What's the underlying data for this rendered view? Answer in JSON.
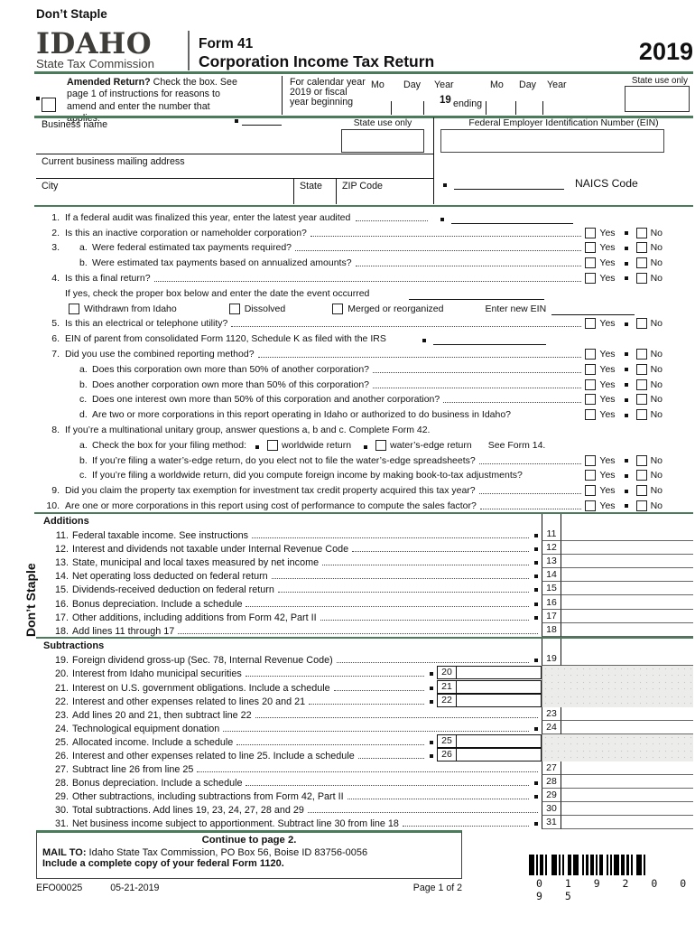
{
  "colors": {
    "accent_green": "#4A7B5A",
    "shade_gray": "#ECECEA"
  },
  "page": {
    "dont_staple_top": "Don’t Staple",
    "dont_staple_side": "Don’t Staple"
  },
  "header": {
    "logo_name": "IDAHO",
    "logo_sub": "State Tax Commission",
    "form_number": "Form 41",
    "form_title": "Corporation Income Tax Return",
    "year": "2019"
  },
  "amended": {
    "line1_bold": "Amended Return?",
    "line1_rest": " Check the box. See",
    "line2": "page 1 of instructions for reasons to",
    "line3": "amend and enter the number that applies."
  },
  "calendar": {
    "line1": "For calendar year",
    "line2": "2019 or fiscal",
    "line3": "year beginning",
    "mo1": "Mo",
    "day1": "Day",
    "year1": "Year",
    "preprint": "19",
    "ending": "ending",
    "mo2": "Mo",
    "day2": "Day",
    "year2": "Year",
    "state_use": "State use only"
  },
  "business": {
    "business_name": "Business name",
    "state_use": "State use only",
    "ein_label": "Federal Employer Identification Number (EIN)",
    "address_label": "Current business mailing address",
    "city": "City",
    "state": "State",
    "zip": "ZIP Code",
    "naics": "NAICS Code"
  },
  "questions": {
    "yes_label": "Yes",
    "no_label": "No",
    "rows": [
      {
        "id": "1",
        "num": "1.",
        "text": "If a federal audit was finalized this year, enter the latest year audited",
        "type": "uline",
        "dots": true,
        "uw": 135
      },
      {
        "id": "2",
        "num": "2.",
        "text": "Is this an inactive corporation or nameholder corporation?",
        "type": "yesno"
      },
      {
        "id": "3a",
        "num": "3.",
        "sub": "a.",
        "text": "Were federal estimated tax payments required?",
        "type": "yesno"
      },
      {
        "id": "3b",
        "sub": "b.",
        "text": "Were estimated tax payments based on annualized amounts?",
        "type": "yesno"
      },
      {
        "id": "4",
        "num": "4.",
        "text": "Is this a final return?",
        "type": "yesno"
      },
      {
        "id": "4date",
        "text": "If yes, check the proper box below and enter the date the event occurred",
        "type": "ifyes",
        "uw": 150
      },
      {
        "id": "4events",
        "type": "events",
        "options": [
          "Withdrawn from Idaho",
          "Dissolved",
          "Merged or reorganized"
        ],
        "ein_label": "Enter new EIN"
      },
      {
        "id": "5",
        "num": "5.",
        "text": "Is this an electrical or telephone utility?",
        "type": "yesno"
      },
      {
        "id": "6",
        "num": "6.",
        "text": "EIN of parent from consolidated Form 1120, Schedule K as filed with the IRS",
        "type": "uline",
        "dots": false,
        "uw": 125
      },
      {
        "id": "7",
        "num": "7.",
        "text": "Did you use the combined reporting method?",
        "type": "yesno"
      },
      {
        "id": "7a",
        "sub": "a.",
        "text": "Does this corporation own more than 50% of another corporation?",
        "type": "yesno"
      },
      {
        "id": "7b",
        "sub": "b.",
        "text": "Does another corporation own more than 50% of this corporation?",
        "type": "yesno"
      },
      {
        "id": "7c",
        "sub": "c.",
        "text": "Does one interest own more than 50% of this corporation and another corporation?",
        "type": "yesno"
      },
      {
        "id": "7d",
        "sub": "d.",
        "text": "Are two or more corporations in this report operating in Idaho or authorized to do business in Idaho?",
        "type": "yesno",
        "nodots": true
      },
      {
        "id": "8",
        "num": "8.",
        "text": "If you’re a multinational unitary group, answer questions a, b and c. Complete Form 42.",
        "type": "plain"
      },
      {
        "id": "8a",
        "sub": "a.",
        "text": "Check the box for your filing method:",
        "type": "filing",
        "opt1": "worldwide return",
        "opt2": "water’s-edge return",
        "suffix": "See Form 14."
      },
      {
        "id": "8b",
        "sub": "b.",
        "text": "If you’re filing a water’s-edge return, do you elect not to file the water’s-edge spreadsheets?",
        "type": "yesno"
      },
      {
        "id": "8c",
        "sub": "c.",
        "text": "If you’re filing a worldwide return, did you compute foreign income by making book-to-tax adjustments?",
        "type": "yesno",
        "nodots": true
      },
      {
        "id": "9",
        "num": "9.",
        "text": "Did you claim the property tax exemption for investment tax credit property acquired this tax year?",
        "type": "yesno"
      },
      {
        "id": "10",
        "num": "10.",
        "text": "Are one or more corporations in this report using cost of performance to compute the sales factor?",
        "type": "yesno"
      }
    ]
  },
  "sections": {
    "additions_title": "Additions",
    "subtractions_title": "Subtractions"
  },
  "lines": {
    "additions": [
      {
        "num": "11.",
        "text": "Federal taxable income. See instructions",
        "box": "11",
        "bullet": true,
        "style": "std"
      },
      {
        "num": "12.",
        "text": "Interest and dividends not taxable under Internal Revenue Code",
        "box": "12",
        "bullet": true,
        "style": "std"
      },
      {
        "num": "13.",
        "text": "State, municipal and local taxes measured by net income",
        "box": "13",
        "bullet": true,
        "style": "std"
      },
      {
        "num": "14.",
        "text": "Net operating loss deducted on federal return",
        "box": "14",
        "bullet": true,
        "style": "std"
      },
      {
        "num": "15.",
        "text": "Dividends-received deduction on federal return",
        "box": "15",
        "bullet": true,
        "style": "std"
      },
      {
        "num": "16.",
        "text": "Bonus depreciation. Include a schedule",
        "box": "16",
        "bullet": true,
        "style": "std"
      },
      {
        "num": "17.",
        "text": "Other additions, including additions from Form 42, Part II",
        "box": "17",
        "bullet": true,
        "style": "std"
      },
      {
        "num": "18.",
        "text": "Add lines 11 through 17",
        "box": "18",
        "bullet": false,
        "style": "std"
      }
    ],
    "subtractions": [
      {
        "num": "19.",
        "text": "Foreign dividend gross-up (Sec. 78, Internal Revenue Code)",
        "box": "19",
        "bullet": true,
        "style": "std"
      },
      {
        "num": "20.",
        "text": "Interest from Idaho municipal securities",
        "box": "20",
        "bullet": true,
        "style": "inner"
      },
      {
        "num": "21.",
        "text": "Interest on U.S. government obligations. Include a schedule",
        "box": "21",
        "bullet": true,
        "style": "inner"
      },
      {
        "num": "22.",
        "text": "Interest and other expenses related to lines 20 and 21",
        "box": "22",
        "bullet": true,
        "style": "inner"
      },
      {
        "num": "23.",
        "text": "Add lines 20 and 21, then subtract line 22",
        "box": "23",
        "bullet": false,
        "style": "std"
      },
      {
        "num": "24.",
        "text": "Technological equipment donation",
        "box": "24",
        "bullet": true,
        "style": "std"
      },
      {
        "num": "25.",
        "text": "Allocated income. Include a schedule",
        "box": "25",
        "bullet": true,
        "style": "inner"
      },
      {
        "num": "26.",
        "text": "Interest and other expenses related to line 25. Include a schedule",
        "box": "26",
        "bullet": true,
        "style": "inner"
      },
      {
        "num": "27.",
        "text": "Subtract line 26 from line 25",
        "box": "27",
        "bullet": false,
        "style": "std"
      },
      {
        "num": "28.",
        "text": "Bonus depreciation. Include a schedule",
        "box": "28",
        "bullet": true,
        "style": "std"
      },
      {
        "num": "29.",
        "text": "Other subtractions, including subtractions from Form 42, Part II",
        "box": "29",
        "bullet": true,
        "style": "std"
      },
      {
        "num": "30.",
        "text": "Total subtractions. Add lines 19, 23, 24, 27, 28 and 29",
        "box": "30",
        "bullet": false,
        "style": "std"
      },
      {
        "num": "31.",
        "text": "Net business income subject to apportionment. Subtract line 30 from line 18",
        "box": "31",
        "bullet": true,
        "style": "std"
      }
    ]
  },
  "footer": {
    "continue": "Continue to page 2.",
    "mailto_label": "MAIL TO:",
    "mailto_address": " Idaho State Tax Commission, PO Box 56, Boise ID 83756-0056",
    "include_note": "Include a complete copy of your federal Form 1120.",
    "doc_code": "EFO00025",
    "doc_date": "05-21-2019",
    "page_indicator": "Page 1 of 2",
    "barcode_text": "0 1 9 2 0 0 9 5"
  }
}
